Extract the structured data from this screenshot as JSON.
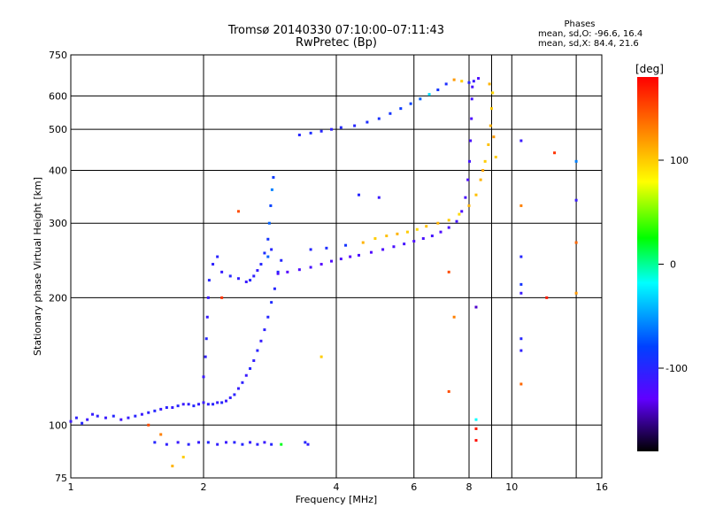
{
  "title": "Tromsø 20140330 07:10:00–07:11:43",
  "subtitle": "RwPretec (Bp)",
  "phase_stats": {
    "title": "Phases",
    "o_label": "mean, sd,O: ",
    "o_values": "-96.6, 16.4",
    "x_label": "mean, sd,X: ",
    "x_values": " 84.4, 21.6"
  },
  "chart_data": {
    "type": "scatter",
    "title": "Tromsø 20140330 07:10:00–07:11:43",
    "subtitle": "RwPretec (Bp)",
    "xlabel": "Frequency [MHz]",
    "ylabel": "Stationary phase Virtual Height [km]",
    "x_scale": "log",
    "y_scale": "log",
    "xlim": [
      1,
      16
    ],
    "ylim": [
      75,
      750
    ],
    "x_ticks": [
      1,
      2,
      4,
      6,
      8,
      10,
      16
    ],
    "y_ticks": [
      75,
      100,
      200,
      300,
      400,
      500,
      600,
      750
    ],
    "x_gridlines": [
      2,
      4,
      6,
      8,
      9,
      10,
      14
    ],
    "y_gridlines": [
      100,
      200,
      300,
      400,
      500,
      600
    ],
    "grid": true,
    "colorbar": {
      "label": "[deg]",
      "range": [
        -180,
        180
      ],
      "ticks": [
        100,
        0,
        -100
      ],
      "colors": [
        "#ff0000",
        "#ff8000",
        "#ffff00",
        "#00ff00",
        "#00ffff",
        "#0040ff",
        "#6000ff",
        "#000000"
      ]
    },
    "series": [
      {
        "points": [
          [
            1.0,
            102,
            -110
          ],
          [
            1.03,
            104,
            -105
          ],
          [
            1.06,
            101,
            -100
          ],
          [
            1.09,
            103,
            -112
          ],
          [
            1.12,
            106,
            -108
          ],
          [
            1.15,
            105,
            -104
          ],
          [
            1.2,
            104,
            -110
          ],
          [
            1.25,
            105,
            -100
          ],
          [
            1.3,
            103,
            -115
          ],
          [
            1.35,
            104,
            -108
          ],
          [
            1.4,
            105,
            -102
          ],
          [
            1.45,
            106,
            -110
          ],
          [
            1.5,
            107,
            -105
          ],
          [
            1.55,
            108,
            -100
          ],
          [
            1.6,
            109,
            -110
          ],
          [
            1.65,
            110,
            -103
          ],
          [
            1.7,
            110,
            -108
          ],
          [
            1.75,
            111,
            -100
          ],
          [
            1.8,
            112,
            -110
          ],
          [
            1.85,
            112,
            -105
          ],
          [
            1.9,
            111,
            -100
          ],
          [
            1.95,
            112,
            -108
          ],
          [
            2.0,
            113,
            -110
          ],
          [
            2.05,
            112,
            -104
          ],
          [
            2.1,
            112,
            -102
          ],
          [
            2.15,
            113,
            -108
          ],
          [
            2.2,
            113,
            -100
          ],
          [
            2.25,
            114,
            -110
          ],
          [
            2.3,
            116,
            -106
          ],
          [
            2.35,
            118,
            -102
          ],
          [
            2.4,
            122,
            -108
          ],
          [
            2.45,
            126,
            -104
          ],
          [
            2.5,
            131,
            -110
          ],
          [
            2.55,
            136,
            -100
          ],
          [
            2.6,
            142,
            -106
          ],
          [
            2.65,
            150,
            -102
          ],
          [
            2.7,
            158,
            -108
          ],
          [
            2.75,
            168,
            -104
          ],
          [
            2.8,
            180,
            -100
          ],
          [
            2.85,
            195,
            -96
          ],
          [
            2.9,
            210,
            -100
          ],
          [
            2.95,
            230,
            -95
          ],
          [
            3.0,
            245,
            -100
          ]
        ]
      },
      {
        "points": [
          [
            1.55,
            91,
            -100
          ],
          [
            1.65,
            90,
            -105
          ],
          [
            1.75,
            91,
            -110
          ],
          [
            1.85,
            90,
            -102
          ],
          [
            1.95,
            91,
            -108
          ],
          [
            2.05,
            91,
            -100
          ],
          [
            2.15,
            90,
            -106
          ],
          [
            2.25,
            91,
            -110
          ],
          [
            2.35,
            91,
            -102
          ],
          [
            2.45,
            90,
            -100
          ],
          [
            2.55,
            91,
            -108
          ],
          [
            2.65,
            90,
            -104
          ],
          [
            2.75,
            91,
            -110
          ],
          [
            2.85,
            90,
            -100
          ],
          [
            3.0,
            90,
            20
          ],
          [
            3.4,
            91,
            -100
          ],
          [
            3.45,
            90,
            -106
          ],
          [
            1.8,
            84,
            100
          ],
          [
            1.7,
            80,
            110
          ]
        ]
      },
      {
        "points": [
          [
            2.0,
            130,
            -110
          ],
          [
            2.02,
            145,
            -105
          ],
          [
            2.03,
            160,
            -100
          ],
          [
            2.04,
            180,
            -108
          ],
          [
            2.05,
            200,
            -110
          ],
          [
            2.06,
            220,
            -100
          ],
          [
            2.1,
            240,
            -104
          ],
          [
            2.15,
            250,
            -102
          ],
          [
            2.2,
            230,
            -108
          ],
          [
            2.3,
            225,
            -100
          ],
          [
            2.4,
            222,
            -106
          ],
          [
            2.5,
            218,
            -110
          ],
          [
            2.55,
            220,
            -100
          ],
          [
            2.6,
            225,
            -104
          ],
          [
            2.65,
            232,
            -108
          ],
          [
            2.7,
            240,
            -100
          ],
          [
            2.75,
            255,
            -95
          ],
          [
            2.8,
            275,
            -90
          ],
          [
            2.82,
            300,
            -70
          ],
          [
            2.84,
            330,
            -80
          ],
          [
            2.86,
            360,
            -60
          ],
          [
            2.88,
            385,
            -85
          ],
          [
            2.85,
            260,
            -100
          ],
          [
            2.8,
            250,
            -70
          ]
        ]
      },
      {
        "points": [
          [
            2.95,
            228,
            -120
          ],
          [
            3.1,
            230,
            -125
          ],
          [
            3.3,
            233,
            -120
          ],
          [
            3.5,
            236,
            -118
          ],
          [
            3.7,
            240,
            -125
          ],
          [
            3.9,
            244,
            -122
          ],
          [
            4.1,
            247,
            -120
          ],
          [
            4.3,
            250,
            -125
          ],
          [
            4.5,
            252,
            -118
          ],
          [
            4.8,
            256,
            -122
          ],
          [
            5.1,
            260,
            -120
          ],
          [
            5.4,
            264,
            -118
          ],
          [
            5.7,
            268,
            -115
          ],
          [
            6.0,
            272,
            -120
          ],
          [
            6.3,
            276,
            -118
          ],
          [
            6.6,
            280,
            -115
          ],
          [
            6.9,
            286,
            -120
          ],
          [
            7.2,
            293,
            -118
          ],
          [
            7.5,
            303,
            -115
          ],
          [
            7.7,
            320,
            -120
          ],
          [
            7.85,
            345,
            -118
          ],
          [
            7.95,
            380,
            -120
          ],
          [
            8.02,
            420,
            -115
          ],
          [
            8.06,
            470,
            -118
          ],
          [
            8.1,
            530,
            -120
          ],
          [
            8.12,
            590,
            -115
          ],
          [
            8.14,
            630,
            -118
          ]
        ]
      },
      {
        "points": [
          [
            3.5,
            260,
            -100
          ],
          [
            3.8,
            262,
            -95
          ],
          [
            4.2,
            266,
            -90
          ],
          [
            4.6,
            270,
            110
          ],
          [
            4.9,
            276,
            100
          ],
          [
            5.2,
            280,
            105
          ],
          [
            5.5,
            283,
            110
          ],
          [
            5.8,
            286,
            100
          ],
          [
            6.1,
            290,
            95
          ],
          [
            6.4,
            295,
            105
          ],
          [
            6.8,
            300,
            110
          ],
          [
            7.2,
            305,
            100
          ],
          [
            7.6,
            315,
            95
          ],
          [
            8.0,
            330,
            110
          ],
          [
            8.3,
            350,
            105
          ],
          [
            8.5,
            380,
            110
          ],
          [
            8.7,
            420,
            100
          ],
          [
            8.85,
            460,
            105
          ],
          [
            8.95,
            510,
            110
          ],
          [
            9.0,
            560,
            100
          ],
          [
            9.05,
            610,
            95
          ],
          [
            8.9,
            640,
            110
          ],
          [
            9.1,
            480,
            120
          ],
          [
            9.2,
            430,
            100
          ],
          [
            8.6,
            400,
            115
          ]
        ]
      },
      {
        "points": [
          [
            3.3,
            485,
            -100
          ],
          [
            3.5,
            490,
            -95
          ],
          [
            3.7,
            495,
            -100
          ],
          [
            3.9,
            500,
            -105
          ],
          [
            4.1,
            505,
            -98
          ],
          [
            4.4,
            510,
            -100
          ],
          [
            4.7,
            520,
            -95
          ],
          [
            5.0,
            530,
            -92
          ],
          [
            5.3,
            545,
            -90
          ],
          [
            5.6,
            560,
            -85
          ],
          [
            5.9,
            575,
            -80
          ],
          [
            6.2,
            590,
            -70
          ],
          [
            6.5,
            605,
            -30
          ],
          [
            6.8,
            620,
            -90
          ],
          [
            7.1,
            640,
            -95
          ],
          [
            7.4,
            655,
            120
          ],
          [
            7.7,
            650,
            100
          ],
          [
            8.0,
            645,
            -100
          ],
          [
            8.2,
            650,
            -110
          ],
          [
            8.4,
            660,
            -120
          ]
        ]
      },
      {
        "points": [
          [
            10.5,
            470,
            -110
          ],
          [
            10.5,
            330,
            130
          ],
          [
            10.5,
            250,
            -100
          ],
          [
            10.5,
            215,
            -90
          ],
          [
            10.5,
            205,
            -110
          ],
          [
            10.5,
            160,
            -100
          ],
          [
            10.5,
            150,
            -105
          ],
          [
            10.5,
            125,
            140
          ],
          [
            12.5,
            440,
            160
          ],
          [
            12.0,
            200,
            170
          ],
          [
            14.0,
            420,
            -60
          ],
          [
            14.0,
            340,
            -110
          ],
          [
            14.0,
            270,
            140
          ],
          [
            14.0,
            205,
            120
          ],
          [
            2.4,
            320,
            150
          ],
          [
            2.2,
            200,
            160
          ],
          [
            4.5,
            350,
            -100
          ],
          [
            5.0,
            345,
            -110
          ],
          [
            7.2,
            230,
            150
          ],
          [
            7.2,
            120,
            150
          ],
          [
            3.7,
            145,
            100
          ],
          [
            8.3,
            98,
            170
          ],
          [
            8.3,
            92,
            175
          ],
          [
            8.3,
            103,
            -20
          ],
          [
            8.3,
            190,
            -140
          ],
          [
            7.4,
            180,
            130
          ],
          [
            1.5,
            100,
            150
          ],
          [
            1.6,
            95,
            130
          ]
        ]
      }
    ]
  }
}
